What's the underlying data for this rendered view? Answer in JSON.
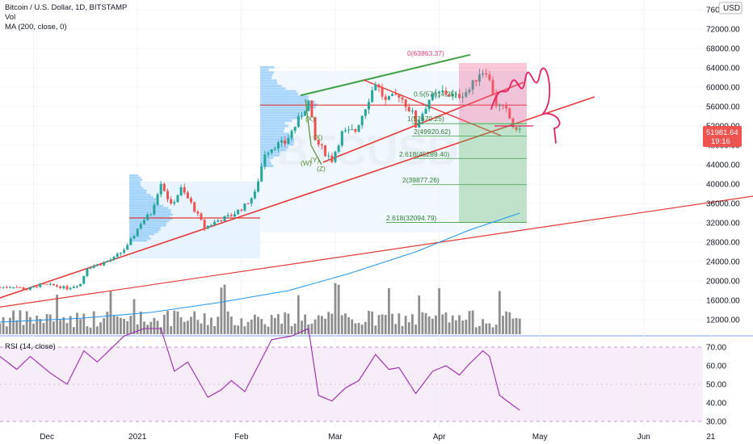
{
  "legend": {
    "title": "Bitcoin / U.S. Dollar, 1D, BITSTAMP",
    "vol": "Vol",
    "ma": "MA (200, close, 0)"
  },
  "rsi_legend": "RSI (14, close)",
  "currency": "USD",
  "price_badge": {
    "price": "51981.64",
    "countdown": "19:16"
  },
  "watermark": "BTCUSD",
  "colors": {
    "up": "#26a69a",
    "down": "#ef5350",
    "ma": "#2196f3",
    "trend": "#e53935",
    "channel_top": "#43a047",
    "marker": "#e91e63",
    "rsi": "#9c27b0",
    "rsi_bg": "#f3e5f5",
    "volume": "#7a7a7a",
    "profile": "#90caf9"
  },
  "annotations": {
    "fib_top": "0(63863.37)",
    "fib_1": "0.5(57614.25)",
    "fib_2": "1(52470.25)",
    "fib_3": "2(49920.62)",
    "fib_4": "2.618(45289.40)",
    "fib_5": "2(39877.26)",
    "fib_6": "2.618(32094.79)",
    "wave_x1": "(X)",
    "wave_x2": "(X)",
    "wave_w": "(W)",
    "wave_y": "(Y)",
    "wave_z": "(Z)"
  },
  "chart_data": {
    "type": "candlestick",
    "title": "Bitcoin / U.S. Dollar, 1D, BITSTAMP",
    "x_axis": [
      "Dec",
      "2021",
      "Feb",
      "Mar",
      "Apr",
      "May",
      "Jun",
      "21"
    ],
    "y_axis": [
      "76000.00",
      "72000.00",
      "68000.00",
      "64000.00",
      "60000.00",
      "56000.00",
      "52000.00",
      "48000.00",
      "44000.00",
      "40000.00",
      "36000.00",
      "32000.00",
      "28000.00",
      "24000.00",
      "20000.00",
      "16000.00",
      "12000.00"
    ],
    "rsi_axis": [
      "70.00",
      "60.00",
      "50.00",
      "40.00",
      "30.00"
    ],
    "x_range": [
      "2020-11-21",
      "2021-06-27"
    ],
    "y_range": [
      9000,
      78000
    ],
    "price_close": [
      [
        "2020-11-21",
        18700
      ],
      [
        "2020-11-25",
        18900
      ],
      [
        "2020-11-29",
        18200
      ],
      [
        "2020-12-03",
        19200
      ],
      [
        "2020-12-07",
        19100
      ],
      [
        "2020-12-11",
        18500
      ],
      [
        "2020-12-15",
        19400
      ],
      [
        "2020-12-17",
        22800
      ],
      [
        "2020-12-21",
        23500
      ],
      [
        "2020-12-25",
        24700
      ],
      [
        "2020-12-29",
        27100
      ],
      [
        "2021-01-02",
        32000
      ],
      [
        "2021-01-05",
        34000
      ],
      [
        "2021-01-08",
        40500
      ],
      [
        "2021-01-11",
        35500
      ],
      [
        "2021-01-14",
        39000
      ],
      [
        "2021-01-17",
        36000
      ],
      [
        "2021-01-21",
        31000
      ],
      [
        "2021-01-25",
        32500
      ],
      [
        "2021-01-29",
        33500
      ],
      [
        "2021-02-02",
        35500
      ],
      [
        "2021-02-05",
        38000
      ],
      [
        "2021-02-08",
        46500
      ],
      [
        "2021-02-11",
        48000
      ],
      [
        "2021-02-14",
        48500
      ],
      [
        "2021-02-17",
        52000
      ],
      [
        "2021-02-21",
        57000
      ],
      [
        "2021-02-23",
        49000
      ],
      [
        "2021-02-26",
        46500
      ],
      [
        "2021-02-28",
        45000
      ],
      [
        "2021-03-03",
        50500
      ],
      [
        "2021-03-07",
        51000
      ],
      [
        "2021-03-10",
        56000
      ],
      [
        "2021-03-13",
        61000
      ],
      [
        "2021-03-16",
        57000
      ],
      [
        "2021-03-20",
        58500
      ],
      [
        "2021-03-24",
        54500
      ],
      [
        "2021-03-25",
        52000
      ],
      [
        "2021-03-29",
        57500
      ],
      [
        "2021-04-02",
        59000
      ],
      [
        "2021-04-06",
        58000
      ],
      [
        "2021-04-10",
        59500
      ],
      [
        "2021-04-13",
        63000
      ],
      [
        "2021-04-15",
        63500
      ],
      [
        "2021-04-18",
        56500
      ],
      [
        "2021-04-21",
        55000
      ],
      [
        "2021-04-24",
        50500
      ],
      [
        "2021-04-25",
        51981.64
      ]
    ],
    "ma200": [
      [
        "2020-11-21",
        11500
      ],
      [
        "2020-12-15",
        12300
      ],
      [
        "2021-01-05",
        13500
      ],
      [
        "2021-01-25",
        15500
      ],
      [
        "2021-02-15",
        18000
      ],
      [
        "2021-03-05",
        21500
      ],
      [
        "2021-03-25",
        26000
      ],
      [
        "2021-04-10",
        30500
      ],
      [
        "2021-04-25",
        34000
      ]
    ],
    "rsi": [
      [
        "2020-11-21",
        65
      ],
      [
        "2020-11-26",
        58
      ],
      [
        "2020-11-30",
        65
      ],
      [
        "2020-12-06",
        56
      ],
      [
        "2020-12-11",
        50
      ],
      [
        "2020-12-16",
        68
      ],
      [
        "2020-12-20",
        62
      ],
      [
        "2020-12-24",
        69
      ],
      [
        "2020-12-28",
        76
      ],
      [
        "2021-01-03",
        82
      ],
      [
        "2021-01-08",
        87
      ],
      [
        "2021-01-12",
        57
      ],
      [
        "2021-01-16",
        62
      ],
      [
        "2021-01-22",
        43
      ],
      [
        "2021-01-26",
        47
      ],
      [
        "2021-01-29",
        52
      ],
      [
        "2021-02-02",
        46
      ],
      [
        "2021-02-06",
        60
      ],
      [
        "2021-02-10",
        74
      ],
      [
        "2021-02-16",
        76
      ],
      [
        "2021-02-21",
        81
      ],
      [
        "2021-02-24",
        44
      ],
      [
        "2021-02-28",
        41
      ],
      [
        "2021-03-04",
        48
      ],
      [
        "2021-03-08",
        52
      ],
      [
        "2021-03-13",
        66
      ],
      [
        "2021-03-17",
        58
      ],
      [
        "2021-03-20",
        59
      ],
      [
        "2021-03-25",
        45
      ],
      [
        "2021-03-30",
        57
      ],
      [
        "2021-04-03",
        60
      ],
      [
        "2021-04-07",
        55
      ],
      [
        "2021-04-10",
        61
      ],
      [
        "2021-04-14",
        68
      ],
      [
        "2021-04-16",
        65
      ],
      [
        "2021-04-19",
        44
      ],
      [
        "2021-04-22",
        40
      ],
      [
        "2021-04-25",
        36
      ]
    ]
  }
}
